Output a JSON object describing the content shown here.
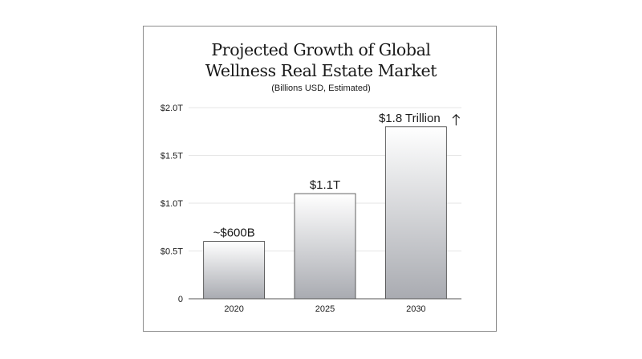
{
  "chart_data": {
    "type": "bar",
    "title_lines": [
      "Projected Growth of Global",
      "Wellness Real Estate Market"
    ],
    "subtitle": "(Billions USD, Estimated)",
    "categories": [
      "2020",
      "2025",
      "2030"
    ],
    "values": [
      0.6,
      1.1,
      1.8
    ],
    "data_labels": [
      "~$600B",
      "$1.1T",
      "$1.8 Trillion"
    ],
    "last_label_icon": "up-arrow-icon",
    "y_ticks": [
      {
        "value": 0,
        "label": "0"
      },
      {
        "value": 0.5,
        "label": "$0.5T"
      },
      {
        "value": 1.0,
        "label": "$1.0T"
      },
      {
        "value": 1.5,
        "label": "$1.5T"
      },
      {
        "value": 2.0,
        "label": "$2.0T"
      }
    ],
    "ylim": [
      0,
      2.0
    ],
    "xlabel": "",
    "ylabel": "",
    "grid": true,
    "legend": "none",
    "colors": {
      "bar_top": "#ffffff",
      "bar_bottom": "#a9abb1",
      "bar_stroke": "#3a3a3a",
      "grid": "#e6e6e6",
      "axis": "#555555",
      "text": "#1a1a1a"
    }
  }
}
